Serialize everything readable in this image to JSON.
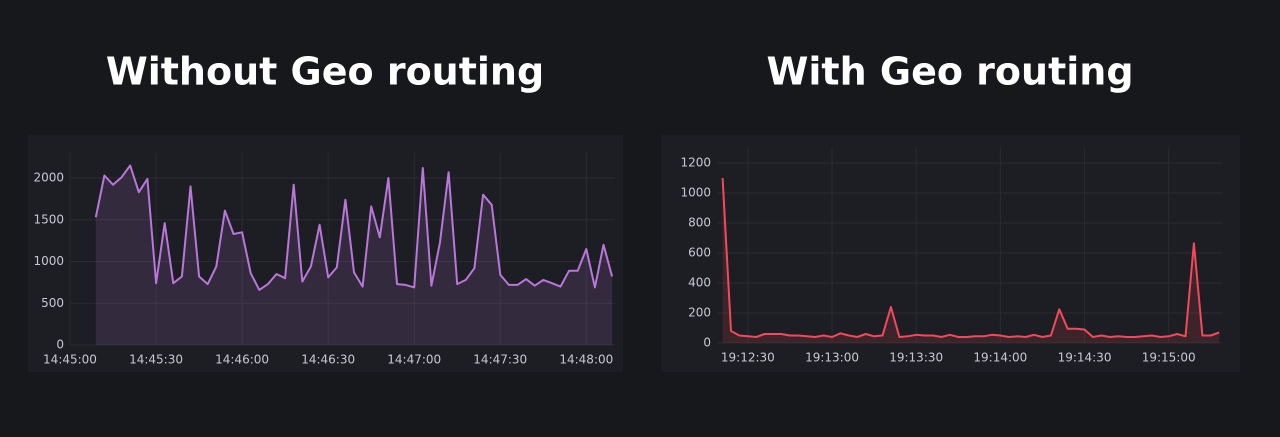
{
  "chart_data": [
    {
      "type": "line",
      "title": "Without Geo routing",
      "color": "#b877d9",
      "grid": true,
      "x": [
        "14:45:09",
        "14:45:12",
        "14:45:15",
        "14:45:18",
        "14:45:21",
        "14:45:24",
        "14:45:27",
        "14:45:30",
        "14:45:33",
        "14:45:36",
        "14:45:39",
        "14:45:42",
        "14:45:45",
        "14:45:48",
        "14:45:51",
        "14:45:54",
        "14:45:57",
        "14:46:00",
        "14:46:03",
        "14:46:06",
        "14:46:09",
        "14:46:12",
        "14:46:15",
        "14:46:18",
        "14:46:21",
        "14:46:24",
        "14:46:27",
        "14:46:30",
        "14:46:33",
        "14:46:36",
        "14:46:39",
        "14:46:42",
        "14:46:45",
        "14:46:48",
        "14:46:51",
        "14:46:54",
        "14:46:57",
        "14:47:00",
        "14:47:03",
        "14:47:06",
        "14:47:09",
        "14:47:12",
        "14:47:15",
        "14:47:18",
        "14:47:21",
        "14:47:24",
        "14:47:27",
        "14:47:30",
        "14:47:33",
        "14:47:36",
        "14:47:39",
        "14:47:42",
        "14:47:45",
        "14:47:48",
        "14:47:51",
        "14:47:54",
        "14:47:57",
        "14:48:00",
        "14:48:03",
        "14:48:06",
        "14:48:09"
      ],
      "values": [
        1530,
        2030,
        1920,
        2010,
        2150,
        1830,
        1990,
        740,
        1460,
        740,
        820,
        1900,
        820,
        730,
        940,
        1610,
        1330,
        1350,
        860,
        660,
        730,
        850,
        800,
        1920,
        760,
        940,
        1440,
        810,
        930,
        1740,
        870,
        700,
        1660,
        1290,
        2000,
        730,
        720,
        690,
        2120,
        710,
        1230,
        2070,
        730,
        780,
        920,
        1800,
        1680,
        840,
        720,
        720,
        790,
        710,
        780,
        740,
        700,
        890,
        890,
        1150,
        690,
        1200,
        820
      ],
      "xlim": [
        "14:45:00",
        "14:48:10"
      ],
      "xticks": [
        "14:45:00",
        "14:45:30",
        "14:46:00",
        "14:46:30",
        "14:47:00",
        "14:47:30",
        "14:48:00"
      ],
      "ylim": [
        0,
        2300
      ],
      "yticks": [
        0,
        500,
        1000,
        1500,
        2000
      ]
    },
    {
      "type": "line",
      "title": "With Geo routing",
      "color": "#f2495c",
      "grid": true,
      "x": [
        "19:12:21",
        "19:12:24",
        "19:12:27",
        "19:12:30",
        "19:12:33",
        "19:12:36",
        "19:12:39",
        "19:12:42",
        "19:12:45",
        "19:12:48",
        "19:12:51",
        "19:12:54",
        "19:12:57",
        "19:13:00",
        "19:13:03",
        "19:13:06",
        "19:13:09",
        "19:13:12",
        "19:13:15",
        "19:13:18",
        "19:13:21",
        "19:13:24",
        "19:13:27",
        "19:13:30",
        "19:13:33",
        "19:13:36",
        "19:13:39",
        "19:13:42",
        "19:13:45",
        "19:13:48",
        "19:13:51",
        "19:13:54",
        "19:13:57",
        "19:14:00",
        "19:14:03",
        "19:14:06",
        "19:14:09",
        "19:14:12",
        "19:14:15",
        "19:14:18",
        "19:14:21",
        "19:14:24",
        "19:14:27",
        "19:14:30",
        "19:14:33",
        "19:14:36",
        "19:14:39",
        "19:14:42",
        "19:14:45",
        "19:14:48",
        "19:14:51",
        "19:14:54",
        "19:14:57",
        "19:15:00",
        "19:15:03",
        "19:15:06",
        "19:15:09",
        "19:15:12",
        "19:15:15",
        "19:15:18"
      ],
      "values": [
        1100,
        80,
        50,
        45,
        40,
        60,
        60,
        60,
        50,
        50,
        45,
        40,
        50,
        40,
        65,
        50,
        40,
        60,
        45,
        50,
        240,
        40,
        45,
        55,
        50,
        50,
        40,
        55,
        40,
        40,
        45,
        45,
        55,
        50,
        40,
        45,
        40,
        55,
        40,
        50,
        225,
        95,
        95,
        90,
        40,
        50,
        40,
        45,
        40,
        40,
        45,
        50,
        40,
        45,
        60,
        45,
        665,
        50,
        50,
        70
      ],
      "xlim": [
        "19:12:19",
        "19:15:19"
      ],
      "xticks": [
        "19:12:30",
        "19:13:00",
        "19:13:30",
        "19:14:00",
        "19:14:30",
        "19:15:00"
      ],
      "ylim": [
        0,
        1300
      ],
      "yticks": [
        0,
        200,
        400,
        600,
        800,
        1000,
        1200
      ]
    }
  ]
}
